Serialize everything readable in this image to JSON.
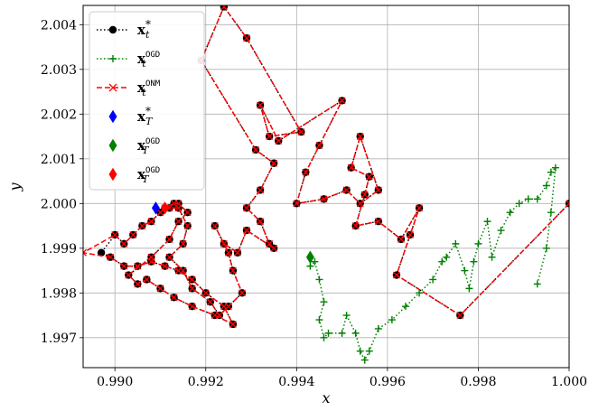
{
  "chart_data": {
    "type": "line",
    "xlabel": "x",
    "ylabel": "y",
    "xlim": [
      0.9893,
      1.0
    ],
    "ylim": [
      1.99633,
      2.00443
    ],
    "xticks": [
      "0.990",
      "0.992",
      "0.994",
      "0.996",
      "0.998",
      "1.000"
    ],
    "yticks": [
      "1.997",
      "1.998",
      "1.999",
      "2.000",
      "2.001",
      "2.002",
      "2.003",
      "2.004"
    ],
    "grid": true,
    "legend_position": "top-left",
    "legend": [
      {
        "label": "x*_t",
        "color": "#000000",
        "style": "dotted",
        "marker": "circle"
      },
      {
        "label": "x^OGD_t",
        "color": "#008000",
        "style": "dotted",
        "marker": "plus"
      },
      {
        "label": "x^ONM_t",
        "color": "#ff0000",
        "style": "dashed",
        "marker": "x"
      },
      {
        "label": "x*_T",
        "color": "#0000ff",
        "marker": "diamond"
      },
      {
        "label": "x^OGD_T",
        "color": "#008000",
        "marker": "diamond"
      },
      {
        "label": "x^OGD_T",
        "color": "#ff0000",
        "marker": "diamond"
      }
    ],
    "series": [
      {
        "name": "x*_t",
        "color": "#000000",
        "points": [
          [
            1.0,
            2.0
          ],
          [
            0.9976,
            1.9975
          ],
          [
            0.9962,
            1.9984
          ],
          [
            0.9965,
            1.9993
          ],
          [
            0.9967,
            1.9999
          ],
          [
            0.9963,
            1.9992
          ],
          [
            0.9958,
            1.9996
          ],
          [
            0.9953,
            1.9995
          ],
          [
            0.9955,
            2.0002
          ],
          [
            0.9956,
            2.0006
          ],
          [
            0.9952,
            2.0008
          ],
          [
            0.9954,
            2.0015
          ],
          [
            0.9958,
            2.0003
          ],
          [
            0.9954,
            2.0
          ],
          [
            0.9951,
            2.0003
          ],
          [
            0.9946,
            2.0001
          ],
          [
            0.994,
            2.0
          ],
          [
            0.9942,
            2.0007
          ],
          [
            0.9945,
            2.0013
          ],
          [
            0.995,
            2.0023
          ],
          [
            0.9936,
            2.0014
          ],
          [
            0.9932,
            2.0022
          ],
          [
            0.9934,
            2.0015
          ],
          [
            0.9941,
            2.0016
          ],
          [
            0.9929,
            2.0037
          ],
          [
            0.9924,
            2.0044
          ],
          [
            0.9919,
            2.0032
          ],
          [
            0.9931,
            2.0012
          ],
          [
            0.9935,
            2.0009
          ],
          [
            0.9932,
            2.0003
          ],
          [
            0.9929,
            1.9999
          ],
          [
            0.9932,
            1.9996
          ],
          [
            0.9934,
            1.9991
          ],
          [
            0.9935,
            1.999
          ],
          [
            0.9929,
            1.9994
          ],
          [
            0.9927,
            1.9989
          ],
          [
            0.9924,
            1.9991
          ],
          [
            0.9922,
            1.9995
          ],
          [
            0.9925,
            1.9989
          ],
          [
            0.9926,
            1.9985
          ],
          [
            0.9928,
            1.998
          ],
          [
            0.9925,
            1.9977
          ],
          [
            0.9923,
            1.9975
          ],
          [
            0.9921,
            1.9978
          ],
          [
            0.9917,
            1.9981
          ],
          [
            0.9915,
            1.9985
          ],
          [
            0.9912,
            1.9988
          ],
          [
            0.9915,
            1.9991
          ],
          [
            0.9916,
            1.9995
          ],
          [
            0.9914,
            1.9999
          ],
          [
            0.9912,
            1.9999
          ],
          [
            0.991,
            1.9998
          ],
          [
            0.9908,
            1.9996
          ],
          [
            0.9906,
            1.9995
          ],
          [
            0.9904,
            1.9993
          ],
          [
            0.9902,
            1.9991
          ],
          [
            0.99,
            1.9993
          ],
          [
            0.9897,
            1.9989
          ],
          [
            0.9899,
            1.9988
          ],
          [
            0.9902,
            1.9986
          ],
          [
            0.9905,
            1.9986
          ],
          [
            0.9908,
            1.9987
          ],
          [
            0.9911,
            1.9986
          ],
          [
            0.9914,
            1.9985
          ],
          [
            0.9917,
            1.9983
          ],
          [
            0.992,
            1.998
          ],
          [
            0.9924,
            1.9977
          ],
          [
            0.9926,
            1.9973
          ],
          [
            0.9922,
            1.9975
          ],
          [
            0.9917,
            1.9977
          ],
          [
            0.9913,
            1.9979
          ],
          [
            0.991,
            1.9981
          ],
          [
            0.9907,
            1.9983
          ],
          [
            0.9905,
            1.9982
          ],
          [
            0.9903,
            1.9984
          ],
          [
            0.9908,
            1.9988
          ],
          [
            0.9912,
            1.9992
          ],
          [
            0.9914,
            1.9996
          ],
          [
            0.9916,
            1.9998
          ],
          [
            0.9914,
            2.0
          ],
          [
            0.9913,
            2.0
          ],
          [
            0.9911,
            1.9999
          ]
        ]
      },
      {
        "name": "x^OGD_t",
        "color": "#008000",
        "points": [
          [
            0.9943,
            1.9986
          ],
          [
            0.9944,
            1.9987
          ],
          [
            0.9945,
            1.9983
          ],
          [
            0.9946,
            1.9978
          ],
          [
            0.9945,
            1.9974
          ],
          [
            0.9946,
            1.997
          ],
          [
            0.9947,
            1.9971
          ],
          [
            0.995,
            1.9971
          ],
          [
            0.9951,
            1.9975
          ],
          [
            0.9953,
            1.9971
          ],
          [
            0.9954,
            1.9967
          ],
          [
            0.9955,
            1.9965
          ],
          [
            0.9956,
            1.9967
          ],
          [
            0.9958,
            1.9972
          ],
          [
            0.9961,
            1.9974
          ],
          [
            0.9964,
            1.9977
          ],
          [
            0.9967,
            1.998
          ],
          [
            0.997,
            1.9983
          ],
          [
            0.9972,
            1.9987
          ],
          [
            0.9973,
            1.9988
          ],
          [
            0.9975,
            1.9991
          ],
          [
            0.9977,
            1.9985
          ],
          [
            0.9978,
            1.9981
          ],
          [
            0.9979,
            1.9987
          ],
          [
            0.998,
            1.9991
          ],
          [
            0.9982,
            1.9996
          ],
          [
            0.9983,
            1.9988
          ],
          [
            0.9985,
            1.9994
          ],
          [
            0.9987,
            1.9998
          ],
          [
            0.9989,
            2.0
          ],
          [
            0.9991,
            2.0001
          ],
          [
            0.9993,
            2.0001
          ],
          [
            0.9995,
            2.0004
          ],
          [
            0.9996,
            2.0007
          ],
          [
            0.9997,
            2.0008
          ],
          [
            0.9996,
            1.9998
          ],
          [
            0.9995,
            1.999
          ],
          [
            0.9993,
            1.9982
          ]
        ]
      },
      {
        "name": "x^ONM_t",
        "color": "#ff0000",
        "points": [
          [
            1.0,
            2.0
          ],
          [
            0.9976,
            1.9975
          ],
          [
            0.9962,
            1.9984
          ],
          [
            0.9965,
            1.9993
          ],
          [
            0.9967,
            1.9999
          ],
          [
            0.9963,
            1.9992
          ],
          [
            0.9958,
            1.9996
          ],
          [
            0.9953,
            1.9995
          ],
          [
            0.9955,
            2.0002
          ],
          [
            0.9956,
            2.0006
          ],
          [
            0.9952,
            2.0008
          ],
          [
            0.9954,
            2.0015
          ],
          [
            0.9958,
            2.0003
          ],
          [
            0.9954,
            2.0
          ],
          [
            0.9951,
            2.0003
          ],
          [
            0.9946,
            2.0001
          ],
          [
            0.994,
            2.0
          ],
          [
            0.9942,
            2.0007
          ],
          [
            0.9945,
            2.0013
          ],
          [
            0.995,
            2.0023
          ],
          [
            0.9936,
            2.0014
          ],
          [
            0.9932,
            2.0022
          ],
          [
            0.9934,
            2.0015
          ],
          [
            0.9941,
            2.0016
          ],
          [
            0.9929,
            2.0037
          ],
          [
            0.9924,
            2.0044
          ],
          [
            0.9919,
            2.0032
          ],
          [
            0.9931,
            2.0012
          ],
          [
            0.9935,
            2.0009
          ],
          [
            0.9932,
            2.0003
          ],
          [
            0.9929,
            1.9999
          ],
          [
            0.9932,
            1.9996
          ],
          [
            0.9934,
            1.9991
          ],
          [
            0.9935,
            1.999
          ],
          [
            0.9929,
            1.9994
          ],
          [
            0.9927,
            1.9989
          ],
          [
            0.9924,
            1.9991
          ],
          [
            0.9922,
            1.9995
          ],
          [
            0.9925,
            1.9989
          ],
          [
            0.9926,
            1.9985
          ],
          [
            0.9928,
            1.998
          ],
          [
            0.9925,
            1.9977
          ],
          [
            0.9923,
            1.9975
          ],
          [
            0.9921,
            1.9978
          ],
          [
            0.9917,
            1.9981
          ],
          [
            0.9915,
            1.9985
          ],
          [
            0.9912,
            1.9988
          ],
          [
            0.9915,
            1.9991
          ],
          [
            0.9916,
            1.9995
          ],
          [
            0.9914,
            1.9999
          ],
          [
            0.9912,
            1.9999
          ],
          [
            0.991,
            1.9998
          ],
          [
            0.9908,
            1.9996
          ],
          [
            0.9906,
            1.9995
          ],
          [
            0.9904,
            1.9993
          ],
          [
            0.9902,
            1.9991
          ],
          [
            0.99,
            1.9993
          ],
          [
            0.9893,
            1.9989
          ],
          [
            0.9899,
            1.9988
          ],
          [
            0.9902,
            1.9986
          ],
          [
            0.9905,
            1.9986
          ],
          [
            0.9908,
            1.9987
          ],
          [
            0.9911,
            1.9986
          ],
          [
            0.9914,
            1.9985
          ],
          [
            0.9917,
            1.9983
          ],
          [
            0.992,
            1.998
          ],
          [
            0.9924,
            1.9977
          ],
          [
            0.9926,
            1.9973
          ],
          [
            0.9922,
            1.9975
          ],
          [
            0.9917,
            1.9977
          ],
          [
            0.9913,
            1.9979
          ],
          [
            0.991,
            1.9981
          ],
          [
            0.9907,
            1.9983
          ],
          [
            0.9905,
            1.9982
          ],
          [
            0.9903,
            1.9984
          ],
          [
            0.9908,
            1.9988
          ],
          [
            0.9912,
            1.9992
          ],
          [
            0.9914,
            1.9996
          ],
          [
            0.9916,
            1.9998
          ],
          [
            0.9914,
            2.0
          ],
          [
            0.9913,
            2.0
          ],
          [
            0.9911,
            1.9999
          ]
        ]
      }
    ],
    "final_points": [
      {
        "label": "x*_T",
        "color": "#0000ff",
        "x": 0.9909,
        "y": 1.9999
      },
      {
        "label": "x^OGD_T",
        "color": "#008000",
        "x": 0.9943,
        "y": 1.9988
      },
      {
        "label": "x^OGD_T",
        "color": "#ff0000",
        "x": 0.9911,
        "y": 1.9999
      }
    ]
  }
}
